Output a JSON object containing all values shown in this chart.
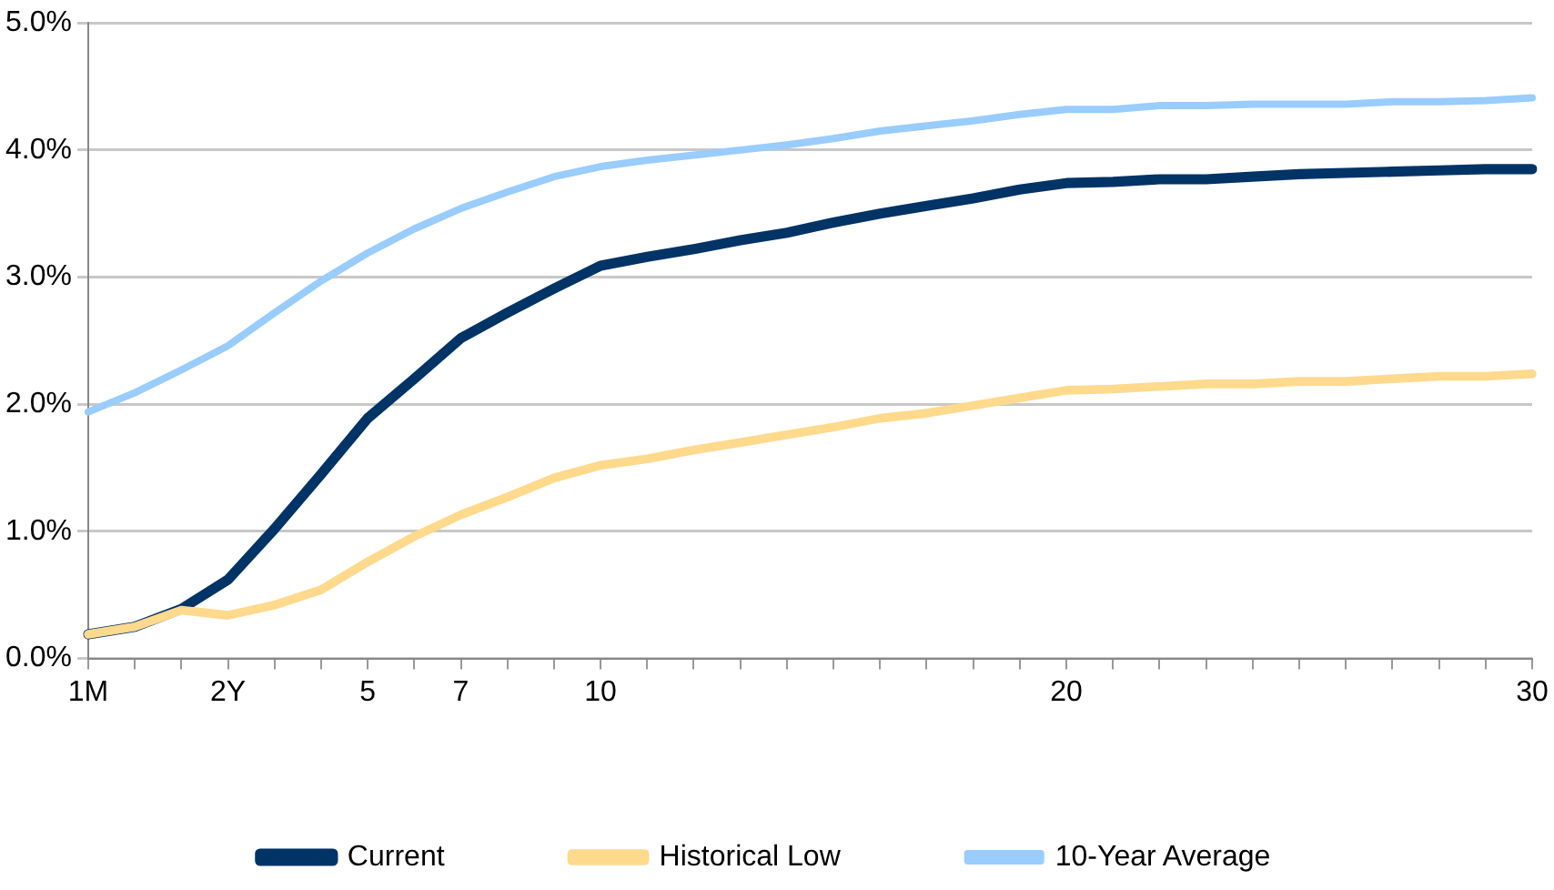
{
  "chart_data": {
    "type": "line",
    "categories": [
      "1M",
      null,
      null,
      "2Y",
      null,
      null,
      "5",
      null,
      "7",
      null,
      null,
      "10",
      null,
      null,
      null,
      null,
      null,
      null,
      null,
      null,
      null,
      "20",
      null,
      null,
      null,
      null,
      null,
      null,
      null,
      null,
      null,
      "30"
    ],
    "series": [
      {
        "name": "Current",
        "color": "#003366",
        "values": [
          0.19,
          0.25,
          0.39,
          0.62,
          1.02,
          1.45,
          1.89,
          2.2,
          2.52,
          2.72,
          2.91,
          3.09,
          3.16,
          3.22,
          3.29,
          3.35,
          3.43,
          3.5,
          3.56,
          3.62,
          3.69,
          3.74,
          3.75,
          3.77,
          3.77,
          3.79,
          3.81,
          3.82,
          3.83,
          3.84,
          3.85,
          3.85
        ]
      },
      {
        "name": "Historical Low",
        "color": "#ffd98c",
        "values": [
          0.19,
          0.25,
          0.38,
          0.34,
          0.42,
          0.54,
          0.76,
          0.96,
          1.13,
          1.27,
          1.42,
          1.52,
          1.57,
          1.64,
          1.7,
          1.76,
          1.82,
          1.89,
          1.93,
          1.99,
          2.05,
          2.11,
          2.12,
          2.14,
          2.16,
          2.16,
          2.18,
          2.18,
          2.2,
          2.22,
          2.22,
          2.24
        ]
      },
      {
        "name": "10-Year Average",
        "color": "#99ccff",
        "values": [
          1.94,
          2.09,
          2.27,
          2.46,
          2.72,
          2.97,
          3.19,
          3.38,
          3.54,
          3.67,
          3.79,
          3.87,
          3.92,
          3.96,
          4.0,
          4.04,
          4.09,
          4.15,
          4.19,
          4.23,
          4.28,
          4.32,
          4.32,
          4.35,
          4.35,
          4.36,
          4.36,
          4.36,
          4.38,
          4.38,
          4.39,
          4.41
        ]
      }
    ],
    "ylim": [
      0,
      5
    ],
    "yticks": [
      {
        "value": 0,
        "label": "0.0%"
      },
      {
        "value": 1,
        "label": "1.0%"
      },
      {
        "value": 2,
        "label": "2.0%"
      },
      {
        "value": 3,
        "label": "3.0%"
      },
      {
        "value": 4,
        "label": "4.0%"
      },
      {
        "value": 5,
        "label": "5.0%"
      }
    ],
    "grid": "y",
    "legend": "bottom",
    "marker": "none",
    "line_style": "solid"
  }
}
